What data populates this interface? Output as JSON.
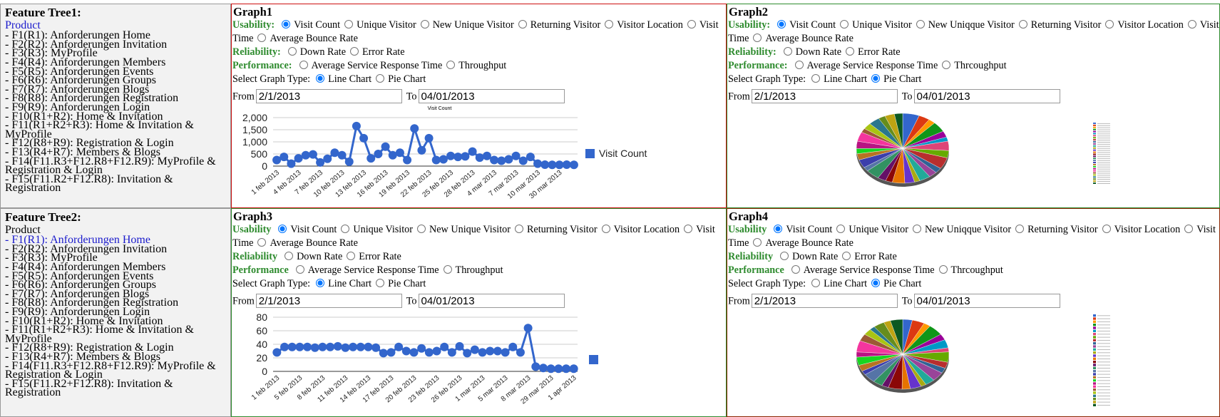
{
  "feature_trees": [
    {
      "title": "Feature Tree1:",
      "root": "Product",
      "root_highlighted": true,
      "items": [
        "- F1(R1): Anforderungen Home",
        "- F2(R2): Anforderungen Invitation",
        "- F3(R3): MyProfile",
        "- F4(R4): Anforderungen Members",
        "- F5(R5): Anforderungen Events",
        "- F6(R6): Anforderungen Groups",
        "- F7(R7): Anforderungen Blogs",
        "- F8(R8): Anforderungen Registration",
        "- F9(R9): Anforderungen Login",
        "- F10(R1+R2): Home & Invitation",
        "- F11(R1+R2+R3): Home & Invitation & MyProfile",
        "- F12(R8+R9): Registration & Login",
        "- F13(R4+R7): Members & Blogs",
        "- F14(F11.R3+F12.R8+F12.R9): MyProfile & Registration & Login",
        "- F15(F11.R2+F12.R8): Invitation & Registration"
      ]
    },
    {
      "title": "Feature Tree2:",
      "root": "Product",
      "root_highlighted": false,
      "highlighted_item": 0,
      "items": [
        "- F1(R1): Anforderungen Home",
        "- F2(R2): Anforderungen Invitation",
        "- F3(R3): MyProfile",
        "- F4(R4): Anforderungen Members",
        "- F5(R5): Anforderungen Events",
        "- F6(R6): Anforderungen Groups",
        "- F7(R7): Anforderungen Blogs",
        "- F8(R8): Anforderungen Registration",
        "- F9(R9): Anforderungen Login",
        "- F10(R1+R2): Home & Invitation",
        "- F11(R1+R2+R3): Home & Invitation & MyProfile",
        "- F12(R8+R9): Registration & Login",
        "- F13(R4+R7): Members & Blogs",
        "- F14(F11.R3+F12.R8+F12.R9): MyProfile & Registration & Login",
        "- F15(F11.R2+F12.R8): Invitation & Registration"
      ]
    }
  ],
  "graphs": [
    {
      "title": "Graph1",
      "usability_label": "Usability:",
      "usability_options": [
        "Visit Count",
        "Unique Visitor",
        "New Unique Visitor",
        "Returning Visitor",
        "Visitor Location",
        "Visit Time",
        "Average Bounce Rate"
      ],
      "usability_selected": 0,
      "reliability_label": "Reliability:",
      "reliability_options": [
        "Down Rate",
        "Error Rate"
      ],
      "performance_label": "Performance:",
      "performance_options": [
        "Average Service Response Time",
        "Throughput"
      ],
      "graph_type_label": "Select Graph Type:",
      "graph_type_options": [
        "Line Chart",
        "Pie Chart"
      ],
      "graph_type_selected": 0,
      "from_label": "From",
      "from_value": "2/1/2013",
      "to_label": "To",
      "to_value": "04/01/2013"
    },
    {
      "title": "Graph2",
      "usability_label": "Usability:",
      "usability_options": [
        "Visit Count",
        "Unique Visitor",
        "New Uniqque Visitor",
        "Returning Visitor",
        "Visitor Location",
        "Visit Time",
        "Average Bounce Rate"
      ],
      "usability_selected": 0,
      "reliability_label": "Reliability:",
      "reliability_options": [
        "Down Rate",
        "Error Rate"
      ],
      "performance_label": "Performance:",
      "performance_options": [
        "Average Service Response Time",
        "Thrcoughput"
      ],
      "graph_type_label": "Select Graph Type:",
      "graph_type_options": [
        "Line Chart",
        "Pie Chart"
      ],
      "graph_type_selected": 1,
      "from_label": "From",
      "from_value": "2/1/2013",
      "to_label": "To",
      "to_value": "04/01/2013"
    },
    {
      "title": "Graph3",
      "usability_label": "Usability",
      "usability_options": [
        "Visit Count",
        "Unique Visitor",
        "New Unique Visitor",
        "Returning Visitor",
        "Visitor Location",
        "Visit Time",
        "Average Bounce Rate"
      ],
      "usability_selected": 0,
      "reliability_label": "Reliability",
      "reliability_options": [
        "Down Rate",
        "Error Rate"
      ],
      "performance_label": "Performance",
      "performance_options": [
        "Average Service Response Time",
        "Throughput"
      ],
      "graph_type_label": "Select Graph Type:",
      "graph_type_options": [
        "Line Chart",
        "Pie Chart"
      ],
      "graph_type_selected": 0,
      "from_label": "From",
      "from_value": "2/1/2013",
      "to_label": "To",
      "to_value": "04/01/2013"
    },
    {
      "title": "Graph4",
      "usability_label": "Usability",
      "usability_options": [
        "Visit Count",
        "Unique Visitor",
        "New Uniqque Visitor",
        "Returning Visitor",
        "Visitor Location",
        "Visit Time",
        "Average Bounce Rate"
      ],
      "usability_selected": 0,
      "reliability_label": "Reliability",
      "reliability_options": [
        "Down Rate",
        "Error Rate"
      ],
      "performance_label": "Performance",
      "performance_options": [
        "Average Service Response Time",
        "Thrcoughput"
      ],
      "graph_type_label": "Select Graph Type:",
      "graph_type_options": [
        "Line Chart",
        "Pie Chart"
      ],
      "graph_type_selected": 1,
      "from_label": "From",
      "from_value": "2/1/2013",
      "to_label": "To",
      "to_value": "04/01/2013"
    }
  ],
  "chart_data": [
    {
      "type": "line",
      "title": "Visit Count",
      "categories": [
        "1 feb 2013",
        null,
        null,
        "4 feb 2013",
        null,
        null,
        "7 feb 2013",
        null,
        null,
        "10 feb 2013",
        null,
        null,
        "13 feb 2013",
        null,
        null,
        "16 feb 2013",
        null,
        null,
        "19 feb 2013",
        null,
        null,
        "22 feb 2013",
        null,
        null,
        "25 feb 2013",
        null,
        null,
        "28 feb 2013",
        null,
        null,
        "4 mar 2013",
        null,
        null,
        "7 mar 2013",
        null,
        null,
        "10 mar 2013",
        null,
        null,
        "30 mar 2013",
        null,
        null
      ],
      "series": [
        {
          "name": "Visit Count",
          "color": "#3366cc",
          "values": [
            250,
            380,
            100,
            320,
            450,
            480,
            150,
            300,
            550,
            450,
            180,
            1650,
            1150,
            320,
            500,
            800,
            450,
            550,
            250,
            1550,
            650,
            1150,
            250,
            280,
            420,
            380,
            400,
            600,
            350,
            420,
            250,
            220,
            280,
            420,
            220,
            380,
            100,
            60,
            50,
            50,
            60,
            50
          ]
        }
      ],
      "ylim": [
        0,
        2000
      ],
      "yticks": [
        0,
        {
          "value": 500,
          "label": "500"
        },
        {
          "value": 1000,
          "label": "1,000"
        },
        {
          "value": 1500,
          "label": "1,500"
        },
        {
          "value": 2000,
          "label": "2,000"
        }
      ],
      "grid": true,
      "legend": "right"
    },
    {
      "type": "pie",
      "values": [
        12,
        8,
        5,
        10,
        6,
        4,
        9,
        7,
        11,
        5,
        6,
        8,
        4,
        7,
        9,
        5,
        6,
        10,
        4,
        8,
        6,
        5,
        7,
        9,
        4,
        6,
        8,
        5,
        7,
        6
      ],
      "colors": [
        "#3366cc",
        "#dc3912",
        "#ff9900",
        "#109618",
        "#990099",
        "#0099c6",
        "#dd4477",
        "#66aa00",
        "#b82e2e",
        "#316395",
        "#994499",
        "#22aa99",
        "#aaaa11",
        "#6633cc",
        "#e67300",
        "#8b0707",
        "#651067",
        "#329262",
        "#5574a6",
        "#3b3eac",
        "#b77322",
        "#16d620",
        "#b91383",
        "#f4359e",
        "#9c5935",
        "#a9c413",
        "#2a778d",
        "#668d1c",
        "#bea413",
        "#0c5922"
      ]
    },
    {
      "type": "line",
      "categories": [
        "1 feb 2013",
        null,
        null,
        "5 feb 2013",
        null,
        null,
        "8 feb 2013",
        null,
        null,
        "11 feb 2013",
        null,
        null,
        "14 feb 2013",
        null,
        null,
        "17 feb 2013",
        null,
        null,
        "20 feb 2013",
        null,
        null,
        "23 feb 2013",
        null,
        null,
        "26 feb 2013",
        null,
        null,
        "1 mar 2013",
        null,
        null,
        "5 mar 2013",
        null,
        null,
        "8 mar 2013",
        null,
        null,
        "29 mar 2013",
        null,
        null,
        "1 apr 2013"
      ],
      "series": [
        {
          "color": "#3366cc",
          "values": [
            28,
            36,
            36,
            36,
            36,
            35,
            36,
            36,
            37,
            35,
            36,
            36,
            36,
            35,
            27,
            28,
            36,
            30,
            28,
            34,
            28,
            30,
            36,
            28,
            37,
            27,
            32,
            28,
            30,
            30,
            28,
            36,
            28,
            64,
            7,
            5,
            4,
            4,
            4,
            4
          ]
        }
      ],
      "ylim": [
        0,
        80
      ],
      "yticks": [
        0,
        20,
        40,
        60,
        80
      ],
      "grid": true,
      "legend": "right"
    },
    {
      "type": "pie",
      "values": [
        7,
        9,
        5,
        11,
        6,
        8,
        4,
        10,
        6,
        5,
        9,
        7,
        4,
        8,
        6,
        10,
        5,
        7,
        9,
        4,
        6,
        8,
        5,
        11,
        7,
        6,
        4,
        8,
        5,
        9
      ],
      "colors": [
        "#3366cc",
        "#dc3912",
        "#ff9900",
        "#109618",
        "#990099",
        "#0099c6",
        "#dd4477",
        "#66aa00",
        "#b82e2e",
        "#316395",
        "#994499",
        "#22aa99",
        "#aaaa11",
        "#6633cc",
        "#e67300",
        "#8b0707",
        "#651067",
        "#329262",
        "#5574a6",
        "#3b3eac",
        "#b77322",
        "#16d620",
        "#b91383",
        "#f4359e",
        "#9c5935",
        "#a9c413",
        "#2a778d",
        "#668d1c",
        "#bea413",
        "#0c5922"
      ]
    }
  ]
}
